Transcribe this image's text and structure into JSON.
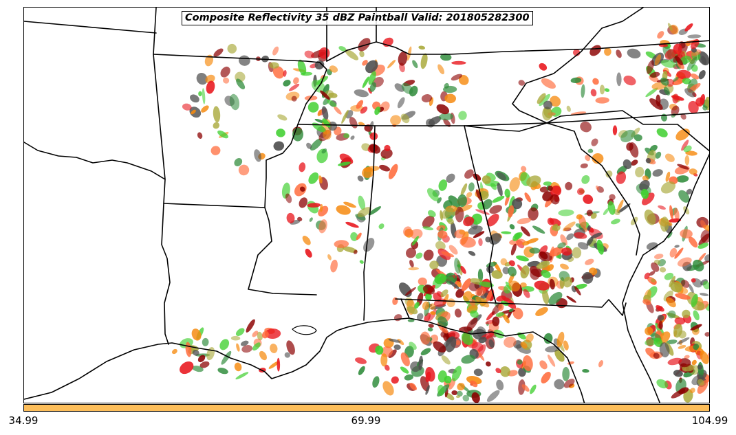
{
  "map": {
    "title": "Composite Reflectivity 35 dBZ Paintball Valid: 201805282300",
    "region_shown": "Southeastern United States",
    "field": "Composite Reflectivity",
    "threshold": "35 dBZ",
    "colors": {
      "borders": "#000000",
      "background": "#ffffff",
      "paint_palette": [
        "#e8161d",
        "#f68a0f",
        "#8b0000",
        "#2e8b3a",
        "#3ecf2e",
        "#4d4d4d",
        "#a8a838",
        "#ff6a3a"
      ]
    }
  },
  "colorbar": {
    "color": "#fdbe5a",
    "ticks": [
      "34.99",
      "69.99",
      "104.99"
    ]
  }
}
